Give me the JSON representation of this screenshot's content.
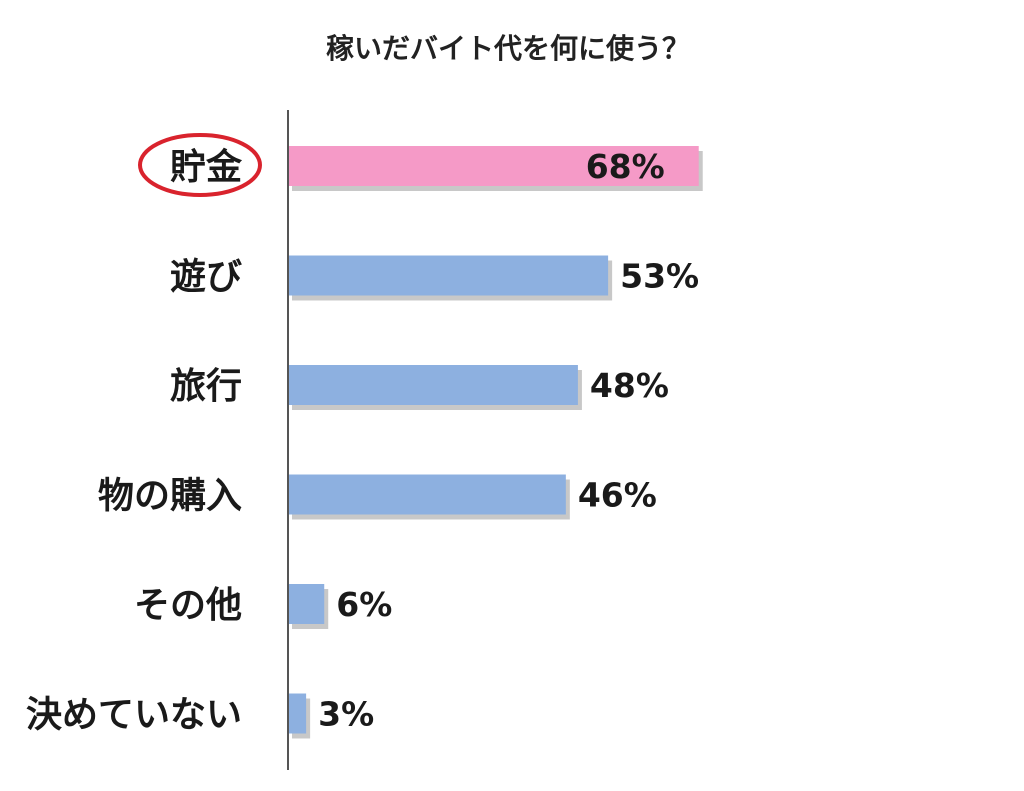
{
  "chart_data": {
    "type": "bar",
    "orientation": "horizontal",
    "title": "稼いだバイト代を何に使う？",
    "categories": [
      "貯金",
      "遊び",
      "旅行",
      "物の購入",
      "その他",
      "決めていない"
    ],
    "values": [
      68,
      53,
      48,
      46,
      6,
      3
    ],
    "value_labels": [
      "68%",
      "53%",
      "48%",
      "46%",
      "6%",
      "3%"
    ],
    "unit": "%",
    "xlim": [
      0,
      100
    ],
    "grid": false,
    "legend": "none",
    "highlight_index": 0,
    "colors": {
      "bar": "#8db0e0",
      "highlight_bar": "#f59ac7",
      "highlight_circle": "#d9232d",
      "axis": "#555555",
      "shadow": "#9a9a9a"
    }
  }
}
